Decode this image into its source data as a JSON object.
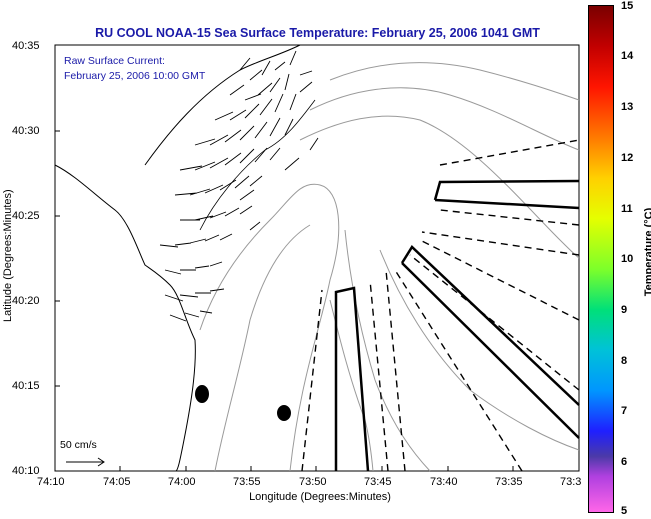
{
  "title": "RU COOL  NOAA-15  Sea Surface Temperature:  February 25, 2006 1041 GMT",
  "current_note": {
    "line1": "Raw Surface Current:",
    "line2": "February 25, 2006 10:00 GMT"
  },
  "axes": {
    "xlabel": "Longitude (Degrees:Minutes)",
    "ylabel": "Latitude (Degrees:Minutes)",
    "xticks": [
      "74:10",
      "74:05",
      "74:00",
      "73:55",
      "73:50",
      "73:45",
      "73:40",
      "73:35",
      "73:3"
    ],
    "yticks": [
      "40:35",
      "40:30",
      "40:25",
      "40:20",
      "40:15",
      "40:10"
    ]
  },
  "colorbar": {
    "label": "Temperature (°C)",
    "ticks": [
      "15",
      "14",
      "13",
      "12",
      "11",
      "10",
      "9",
      "8",
      "7",
      "6",
      "5"
    ]
  },
  "scale_label": "50 cm/s"
}
